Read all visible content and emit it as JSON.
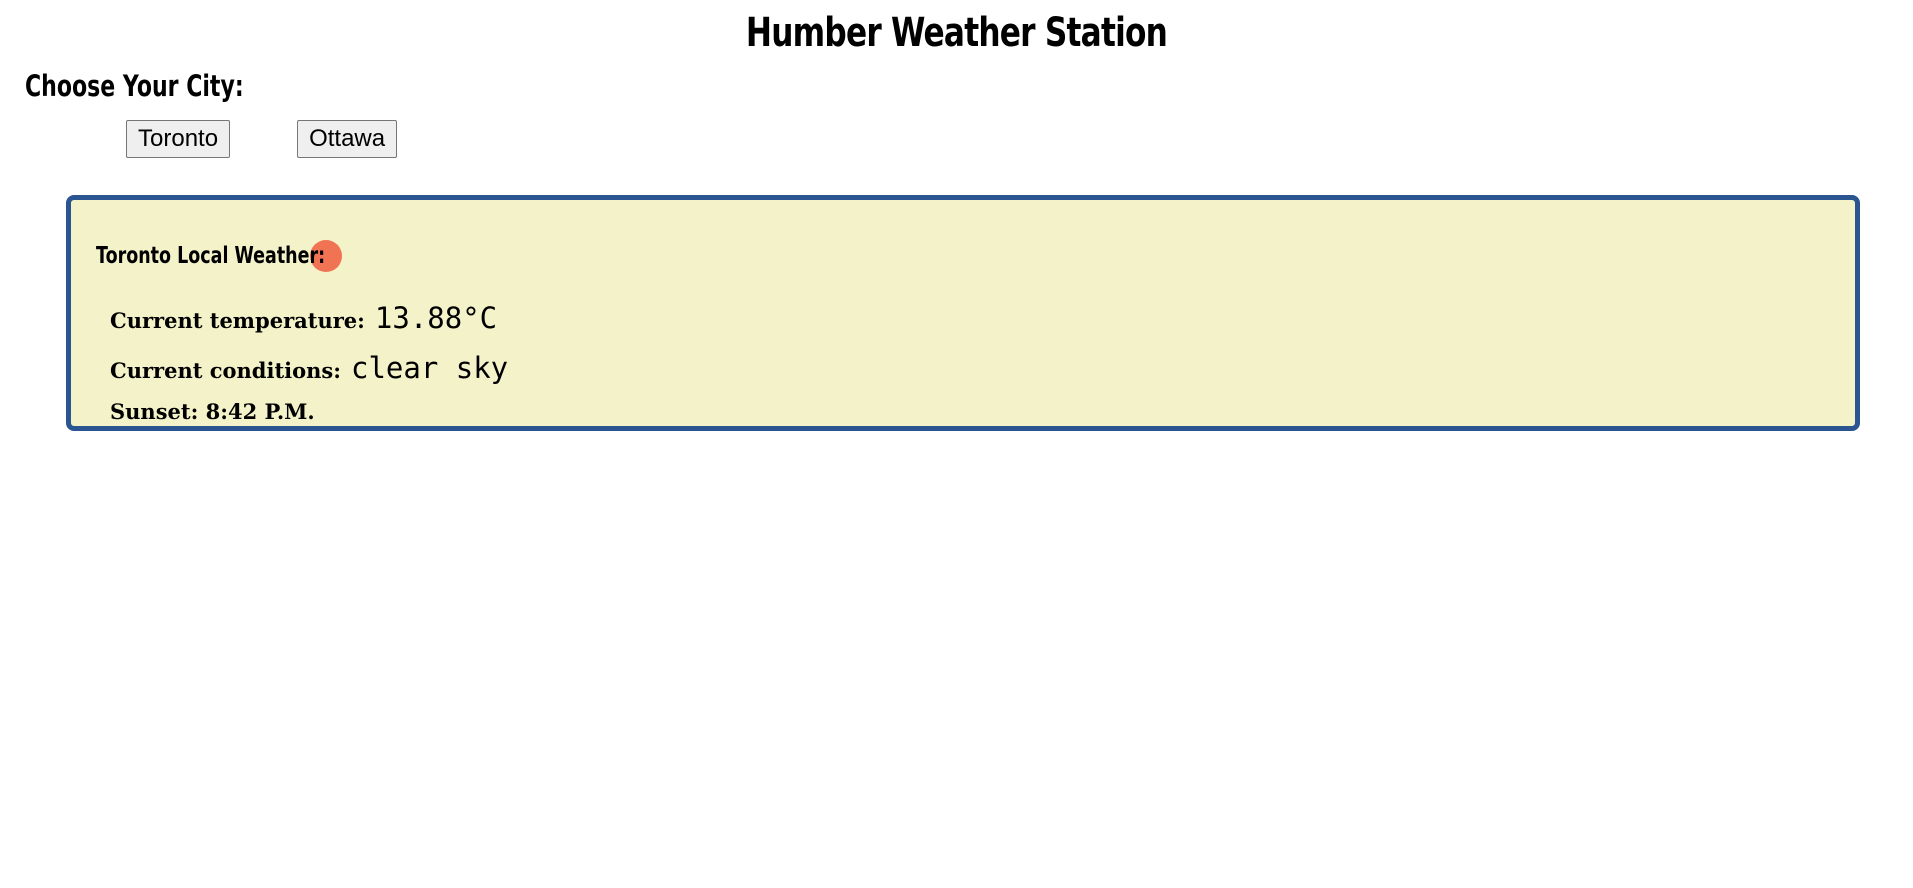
{
  "header": {
    "title": "Humber Weather Station"
  },
  "city_selector": {
    "label": "Choose Your City:",
    "buttons": [
      {
        "label": "Toronto"
      },
      {
        "label": "Ottawa"
      }
    ]
  },
  "weather": {
    "heading": "Toronto Local Weather:",
    "status_icon": "status-dot-icon",
    "status_color": "#f07353",
    "panel_background": "#f4f2c9",
    "panel_border": "#2a5590",
    "temperature_label": "Current temperature:",
    "temperature_value": "13.88°C",
    "conditions_label": "Current conditions:",
    "conditions_value": "clear sky",
    "sunset_text": "Sunset: 8:42 P.M."
  }
}
